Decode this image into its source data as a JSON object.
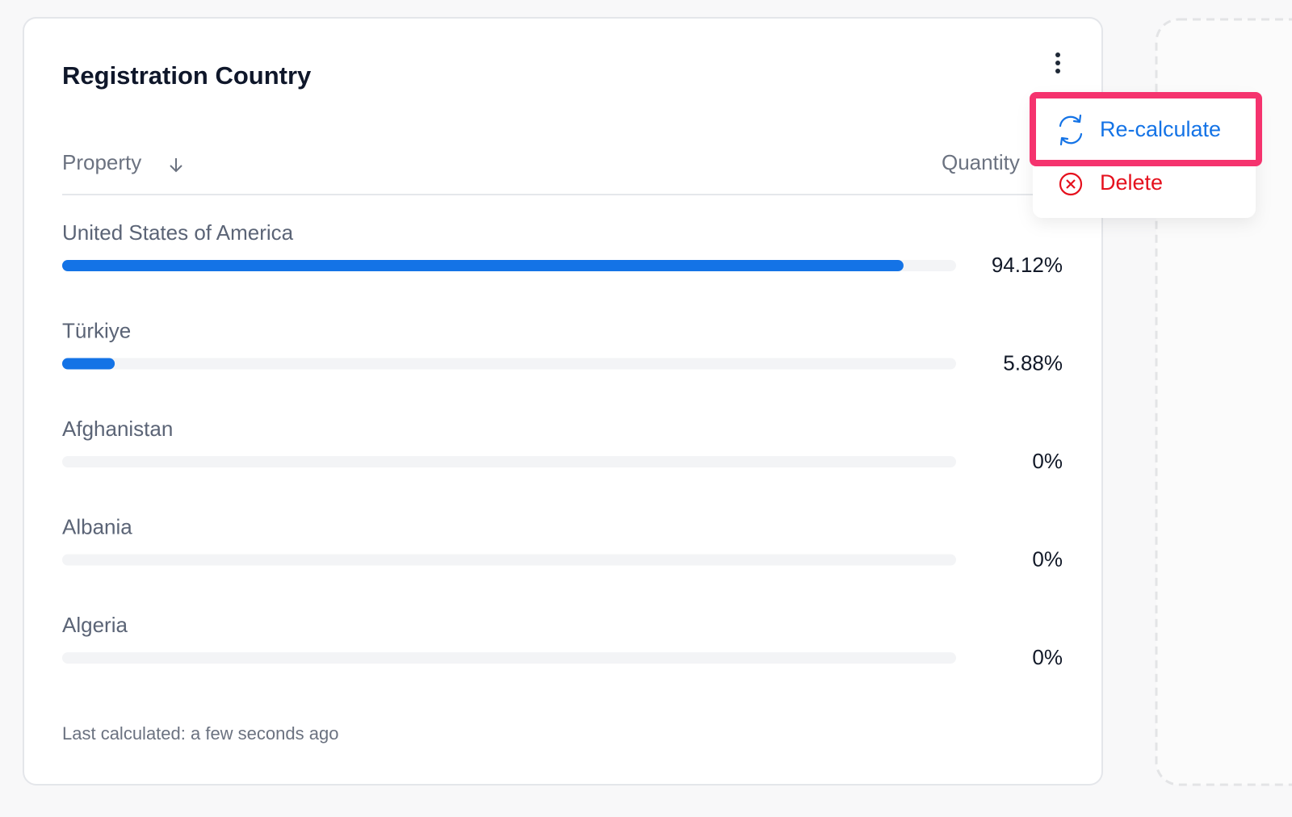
{
  "card": {
    "title": "Registration Country",
    "header": {
      "property": "Property",
      "quantity": "Quantity"
    },
    "rows": [
      {
        "name": "United States of America",
        "value": 94.12,
        "value_label": "94.12%"
      },
      {
        "name": "Türkiye",
        "value": 5.88,
        "value_label": "5.88%"
      },
      {
        "name": "Afghanistan",
        "value": 0,
        "value_label": "0%"
      },
      {
        "name": "Albania",
        "value": 0,
        "value_label": "0%"
      },
      {
        "name": "Algeria",
        "value": 0,
        "value_label": "0%"
      }
    ],
    "footer": "Last calculated: a few seconds ago"
  },
  "menu": {
    "items": [
      "Re-calculate",
      "Delete"
    ]
  }
}
